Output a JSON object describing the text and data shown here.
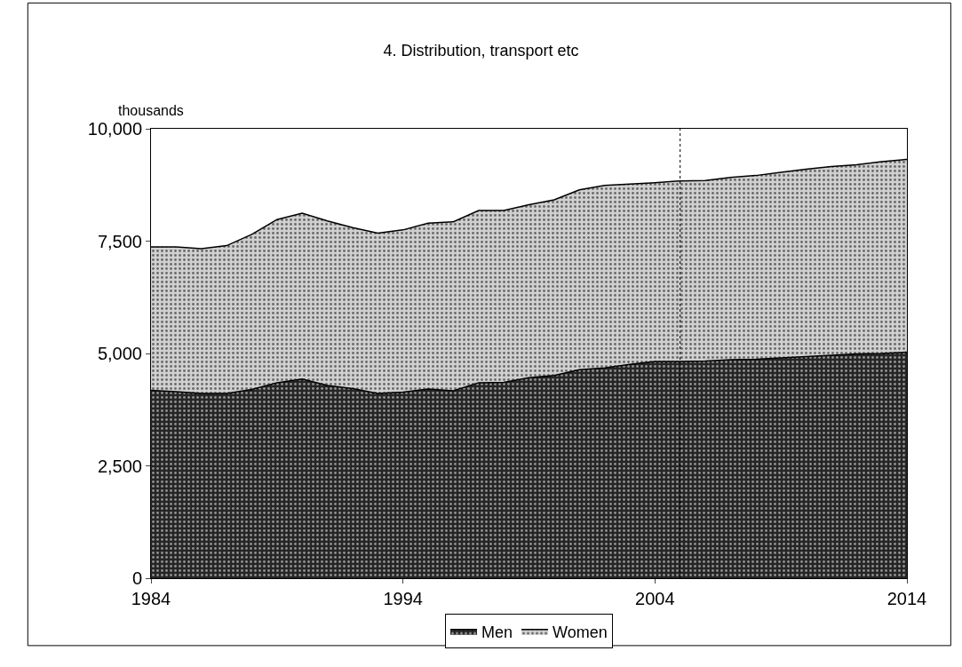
{
  "chart_data": {
    "type": "area",
    "title": "4. Distribution, transport etc",
    "ylabel": "thousands",
    "stacked": true,
    "x": [
      1984,
      1985,
      1986,
      1987,
      1988,
      1989,
      1990,
      1991,
      1992,
      1993,
      1994,
      1995,
      1996,
      1997,
      1998,
      1999,
      2000,
      2001,
      2002,
      2003,
      2004,
      2005,
      2006,
      2007,
      2008,
      2009,
      2010,
      2011,
      2012,
      2013,
      2014
    ],
    "series": [
      {
        "name": "Men",
        "color": "#262626",
        "values": [
          4180,
          4150,
          4110,
          4110,
          4200,
          4350,
          4430,
          4290,
          4220,
          4110,
          4140,
          4210,
          4170,
          4350,
          4360,
          4460,
          4510,
          4640,
          4680,
          4760,
          4820,
          4820,
          4830,
          4860,
          4870,
          4900,
          4930,
          4960,
          4990,
          5000,
          5030
        ]
      },
      {
        "name": "Women",
        "color": "#d0d0d0",
        "values": [
          3190,
          3220,
          3220,
          3290,
          3450,
          3630,
          3690,
          3660,
          3580,
          3570,
          3610,
          3690,
          3760,
          3830,
          3820,
          3850,
          3910,
          4000,
          4060,
          4010,
          3980,
          4020,
          4020,
          4060,
          4090,
          4130,
          4170,
          4200,
          4210,
          4270,
          4290
        ]
      }
    ],
    "xlim": [
      1984,
      2014
    ],
    "xticks": [
      1984,
      1994,
      2004,
      2014
    ],
    "ylim": [
      0,
      10000
    ],
    "yticks": [
      0,
      {
        "value": 2500,
        "label": "2,500"
      },
      {
        "value": 5000,
        "label": "5,000"
      },
      {
        "value": 7500,
        "label": "7,500"
      },
      {
        "value": 10000,
        "label": "10,000"
      }
    ],
    "ref_lines": [
      {
        "axis": "x",
        "value": 2005,
        "line_style": "dotted",
        "color": "#000000"
      }
    ],
    "legend": "bottom"
  }
}
